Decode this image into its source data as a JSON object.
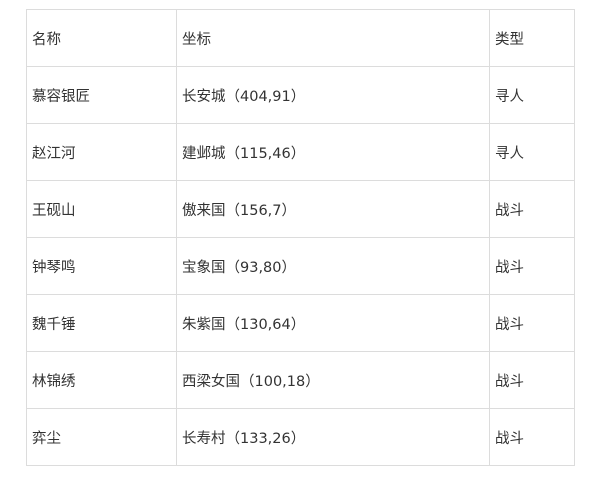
{
  "table": {
    "headers": [
      "名称",
      "坐标",
      "类型"
    ],
    "rows": [
      [
        "慕容银匠",
        "长安城（404,91）",
        "寻人"
      ],
      [
        "赵江河",
        "建邺城（115,46）",
        "寻人"
      ],
      [
        "王砚山",
        "傲来国（156,7）",
        "战斗"
      ],
      [
        "钟琴鸣",
        "宝象国（93,80）",
        "战斗"
      ],
      [
        "魏千锤",
        "朱紫国（130,64）",
        "战斗"
      ],
      [
        "林锦绣",
        "西梁女国（100,18）",
        "战斗"
      ],
      [
        "弈尘",
        "长寿村（133,26）",
        "战斗"
      ]
    ]
  }
}
